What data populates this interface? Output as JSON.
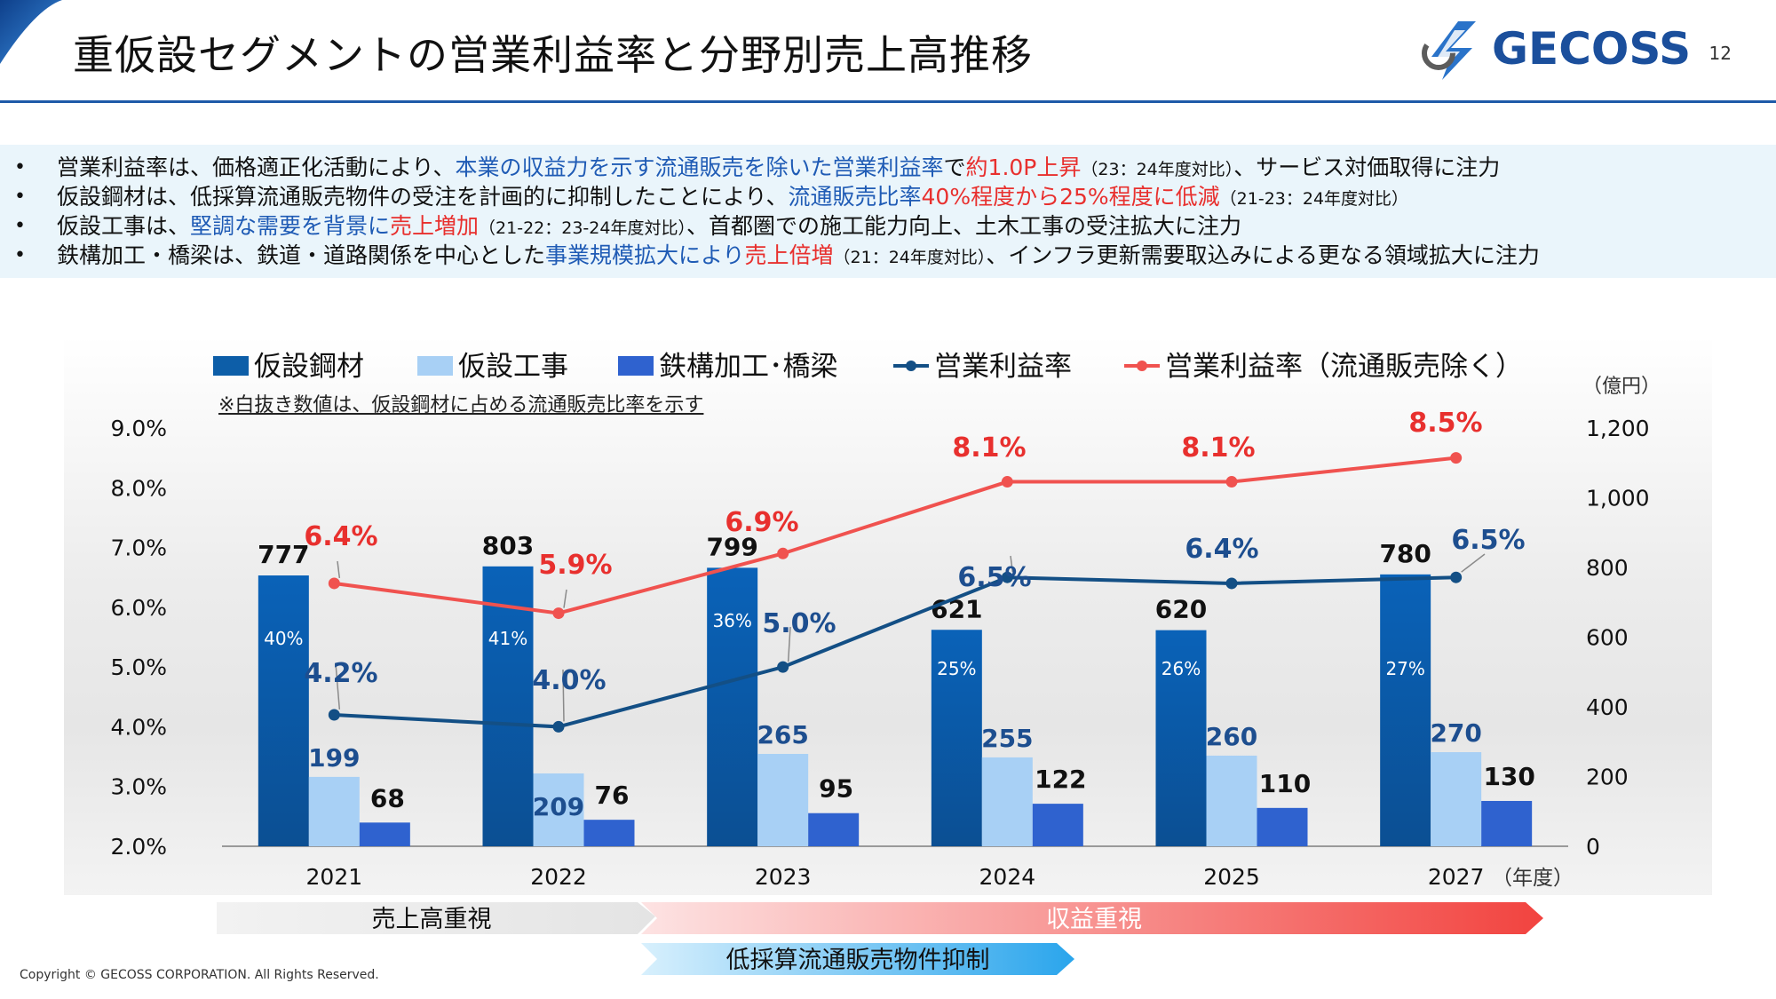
{
  "page": {
    "title": "重仮設セグメントの営業利益率と分野別売上高推移",
    "page_number": "12",
    "logo_text": "GECOSS",
    "copyright": "Copyright © GECOSS CORPORATION. All Rights Reserved."
  },
  "bullets": [
    {
      "parts": [
        {
          "t": "営業利益率は、価格適正化活動により、"
        },
        {
          "t": "本業の収益力を示す流通販売を除いた営業利益率",
          "c": "blue"
        },
        {
          "t": "で"
        },
        {
          "t": "約1.0P上昇",
          "c": "red"
        },
        {
          "t": "（23：24年度対比）",
          "s": "small"
        },
        {
          "t": "、サービス対価取得に注力"
        }
      ]
    },
    {
      "parts": [
        {
          "t": "仮設鋼材は、低採算流通販売物件の受注を計画的に抑制したことにより、"
        },
        {
          "t": "流通販売比率",
          "c": "blue"
        },
        {
          "t": "40%程度から25%程度に低減",
          "c": "red"
        },
        {
          "t": "（21-23：24年度対比）",
          "s": "small"
        }
      ]
    },
    {
      "parts": [
        {
          "t": "仮設工事は、"
        },
        {
          "t": "堅調な需要を背景に",
          "c": "blue"
        },
        {
          "t": "売上増加",
          "c": "red"
        },
        {
          "t": "（21-22：23-24年度対比）",
          "s": "small"
        },
        {
          "t": "、首都圏での施工能力向上、土木工事の受注拡大に注力"
        }
      ]
    },
    {
      "parts": [
        {
          "t": "鉄構加工・橋梁は、鉄道・道路関係を中心とした"
        },
        {
          "t": "事業規模拡大により",
          "c": "blue"
        },
        {
          "t": "売上倍増",
          "c": "red"
        },
        {
          "t": "（21：24年度対比）",
          "s": "small"
        },
        {
          "t": "、インフラ更新需要取込みによる更なる領域拡大に注力"
        }
      ]
    }
  ],
  "legend": {
    "items": [
      "仮設鋼材",
      "仮設工事",
      "鉄構加工･橋梁",
      "営業利益率",
      "営業利益率（流通販売除く）"
    ],
    "note": "※白抜き数値は、仮設鋼材に占める流通販売比率を示す"
  },
  "bands": {
    "sales": "売上高重視",
    "profit": "収益重視",
    "suppress": "低採算流通販売物件抑制"
  },
  "chart_data": {
    "type": "bar+line",
    "categories": [
      "2021",
      "2022",
      "2023",
      "2024",
      "2025",
      "2027"
    ],
    "x_unit_label": "（年度）",
    "y_right_unit": "（億円）",
    "y_left_ticks": [
      "9.0%",
      "8.0%",
      "7.0%",
      "6.0%",
      "5.0%",
      "4.0%",
      "3.0%",
      "2.0%"
    ],
    "y_right_ticks": [
      "1,200",
      "1,000",
      "800",
      "600",
      "400",
      "200",
      "0"
    ],
    "y_left_range": [
      2.0,
      9.0
    ],
    "y_right_range": [
      0,
      1200
    ],
    "series": [
      {
        "name": "仮設鋼材",
        "kind": "bar",
        "color": "#0d5ea8",
        "values": [
          777,
          803,
          799,
          621,
          620,
          780
        ],
        "labels": [
          "777",
          "803",
          "799",
          "621",
          "620",
          "780"
        ],
        "inner_labels": [
          "40%",
          "41%",
          "36%",
          "25%",
          "26%",
          "27%"
        ]
      },
      {
        "name": "仮設工事",
        "kind": "bar",
        "color": "#a8d0f5",
        "values": [
          199,
          209,
          265,
          255,
          260,
          270
        ],
        "labels": [
          "199",
          "209",
          "265",
          "255",
          "260",
          "270"
        ]
      },
      {
        "name": "鉄構加工･橋梁",
        "kind": "bar",
        "color": "#2f62cf",
        "values": [
          68,
          76,
          95,
          122,
          110,
          130
        ],
        "labels": [
          "68",
          "76",
          "95",
          "122",
          "110",
          "130"
        ]
      },
      {
        "name": "営業利益率",
        "kind": "line",
        "color": "#134f85",
        "values": [
          4.2,
          4.0,
          5.0,
          6.5,
          6.4,
          6.5
        ],
        "labels": [
          "4.2%",
          "4.0%",
          "5.0%",
          "6.5%",
          "6.4%",
          "6.5%"
        ]
      },
      {
        "name": "営業利益率（流通販売除く）",
        "kind": "line",
        "color": "#f0524f",
        "values": [
          6.4,
          5.9,
          6.9,
          8.1,
          8.1,
          8.5
        ],
        "labels": [
          "6.4%",
          "5.9%",
          "6.9%",
          "8.1%",
          "8.1%",
          "8.5%"
        ]
      }
    ]
  }
}
